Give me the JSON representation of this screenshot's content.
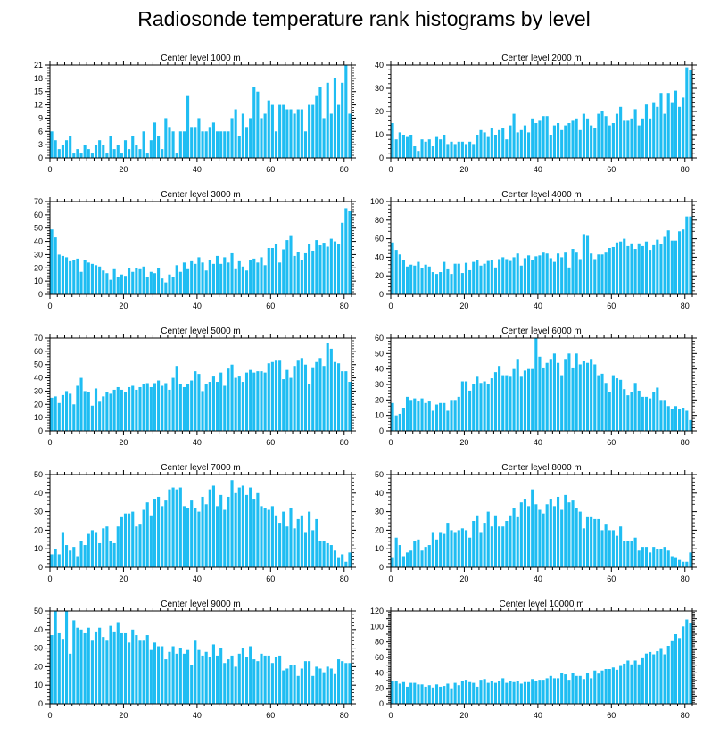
{
  "figure": {
    "title": "Radiosonde temperature rank histograms by level",
    "bar_color": "#1fbdf2"
  },
  "chart_data": [
    {
      "type": "bar",
      "title": "Center level 1000 m",
      "x": {
        "min": 0,
        "max": 82,
        "ticks": [
          0,
          20,
          40,
          60,
          80
        ]
      },
      "y": {
        "min": 0,
        "max": 21,
        "ticks": [
          0,
          3,
          6,
          9,
          12,
          15,
          18,
          21
        ]
      },
      "categories_start": 0,
      "values": [
        6,
        4,
        2,
        3,
        4,
        5,
        1,
        2,
        1,
        3,
        2,
        1,
        3,
        4,
        3,
        1,
        5,
        2,
        3,
        1,
        4,
        2,
        5,
        3,
        2,
        6,
        1,
        4,
        8,
        5,
        2,
        9,
        7,
        6,
        1,
        6,
        6,
        14,
        7,
        7,
        9,
        6,
        6,
        7,
        8,
        6,
        6,
        6,
        6,
        9,
        11,
        5,
        10,
        7,
        9,
        16,
        15,
        9,
        10,
        13,
        12,
        6,
        12,
        12,
        11,
        11,
        10,
        11,
        11,
        6,
        12,
        12,
        14,
        16,
        9,
        17,
        10,
        18,
        12,
        17,
        21,
        10
      ]
    },
    {
      "type": "bar",
      "title": "Center level 2000 m",
      "x": {
        "min": 0,
        "max": 82,
        "ticks": [
          0,
          20,
          40,
          60,
          80
        ]
      },
      "y": {
        "min": 0,
        "max": 40,
        "ticks": [
          0,
          10,
          20,
          30,
          40
        ]
      },
      "categories_start": 0,
      "values": [
        15,
        8,
        11,
        10,
        9,
        10,
        5,
        3,
        8,
        7,
        8,
        5,
        9,
        8,
        10,
        6,
        7,
        6,
        7,
        7,
        6,
        7,
        6,
        10,
        12,
        11,
        9,
        13,
        10,
        12,
        13,
        8,
        14,
        19,
        11,
        12,
        14,
        11,
        17,
        15,
        16,
        18,
        18,
        10,
        14,
        15,
        12,
        14,
        15,
        16,
        17,
        12,
        19,
        17,
        14,
        13,
        19,
        20,
        18,
        14,
        15,
        19,
        22,
        16,
        16,
        17,
        21,
        14,
        17,
        23,
        17,
        24,
        22,
        28,
        19,
        28,
        24,
        29,
        22,
        26,
        39,
        38
      ]
    },
    {
      "type": "bar",
      "title": "Center level 3000 m",
      "x": {
        "min": 0,
        "max": 82,
        "ticks": [
          0,
          20,
          40,
          60,
          80
        ]
      },
      "y": {
        "min": 0,
        "max": 70,
        "ticks": [
          0,
          10,
          20,
          30,
          40,
          50,
          60,
          70
        ]
      },
      "categories_start": 0,
      "values": [
        49,
        43,
        30,
        29,
        28,
        25,
        26,
        27,
        17,
        26,
        24,
        23,
        22,
        21,
        18,
        16,
        11,
        19,
        13,
        15,
        14,
        20,
        17,
        20,
        19,
        21,
        13,
        17,
        16,
        20,
        12,
        9,
        15,
        13,
        22,
        17,
        24,
        19,
        25,
        23,
        28,
        24,
        18,
        26,
        23,
        29,
        23,
        28,
        24,
        31,
        19,
        25,
        21,
        18,
        26,
        27,
        24,
        28,
        22,
        35,
        35,
        38,
        24,
        34,
        41,
        44,
        29,
        32,
        26,
        31,
        38,
        33,
        41,
        37,
        39,
        36,
        42,
        40,
        38,
        54,
        65,
        63
      ]
    },
    {
      "type": "bar",
      "title": "Center level 4000 m",
      "x": {
        "min": 0,
        "max": 82,
        "ticks": [
          0,
          20,
          40,
          60,
          80
        ]
      },
      "y": {
        "min": 0,
        "max": 100,
        "ticks": [
          0,
          20,
          40,
          60,
          80,
          100
        ]
      },
      "categories_start": 0,
      "values": [
        56,
        48,
        43,
        37,
        30,
        32,
        31,
        35,
        28,
        32,
        30,
        24,
        22,
        24,
        35,
        27,
        22,
        33,
        33,
        23,
        34,
        26,
        35,
        37,
        31,
        33,
        36,
        37,
        29,
        38,
        40,
        38,
        36,
        40,
        44,
        31,
        39,
        42,
        37,
        41,
        42,
        45,
        44,
        39,
        35,
        44,
        40,
        45,
        29,
        49,
        45,
        38,
        65,
        63,
        44,
        38,
        43,
        43,
        45,
        50,
        51,
        56,
        57,
        60,
        52,
        55,
        49,
        55,
        52,
        57,
        48,
        53,
        59,
        54,
        62,
        69,
        58,
        58,
        68,
        70,
        84,
        84
      ]
    },
    {
      "type": "bar",
      "title": "Center level 5000 m",
      "x": {
        "min": 0,
        "max": 82,
        "ticks": [
          0,
          20,
          40,
          60,
          80
        ]
      },
      "y": {
        "min": 0,
        "max": 70,
        "ticks": [
          0,
          10,
          20,
          30,
          40,
          50,
          60,
          70
        ]
      },
      "categories_start": 0,
      "values": [
        25,
        26,
        21,
        27,
        30,
        28,
        20,
        34,
        40,
        30,
        29,
        19,
        32,
        22,
        26,
        29,
        28,
        31,
        33,
        31,
        29,
        33,
        34,
        31,
        33,
        35,
        36,
        33,
        36,
        38,
        34,
        36,
        31,
        40,
        49,
        35,
        33,
        35,
        38,
        45,
        43,
        30,
        35,
        37,
        41,
        37,
        44,
        34,
        47,
        50,
        40,
        41,
        37,
        44,
        46,
        44,
        45,
        45,
        44,
        51,
        52,
        53,
        53,
        39,
        46,
        40,
        49,
        53,
        55,
        50,
        35,
        48,
        52,
        55,
        49,
        66,
        62,
        52,
        51,
        45,
        45,
        37
      ]
    },
    {
      "type": "bar",
      "title": "Center level 6000 m",
      "x": {
        "min": 0,
        "max": 82,
        "ticks": [
          0,
          20,
          40,
          60,
          80
        ]
      },
      "y": {
        "min": 0,
        "max": 60,
        "ticks": [
          0,
          10,
          20,
          30,
          40,
          50,
          60
        ]
      },
      "categories_start": 0,
      "values": [
        18,
        10,
        11,
        15,
        22,
        20,
        21,
        19,
        21,
        18,
        19,
        13,
        17,
        18,
        18,
        13,
        20,
        20,
        22,
        32,
        32,
        26,
        30,
        35,
        31,
        32,
        30,
        34,
        38,
        42,
        36,
        36,
        35,
        40,
        46,
        35,
        39,
        40,
        40,
        60,
        48,
        41,
        44,
        46,
        50,
        44,
        36,
        46,
        50,
        41,
        50,
        43,
        45,
        44,
        46,
        43,
        36,
        37,
        31,
        25,
        36,
        34,
        33,
        27,
        23,
        25,
        31,
        26,
        22,
        22,
        21,
        25,
        28,
        20,
        20,
        16,
        14,
        16,
        14,
        15,
        13,
        7
      ]
    },
    {
      "type": "bar",
      "title": "Center level 7000 m",
      "x": {
        "min": 0,
        "max": 82,
        "ticks": [
          0,
          20,
          40,
          60,
          80
        ]
      },
      "y": {
        "min": 0,
        "max": 50,
        "ticks": [
          0,
          10,
          20,
          30,
          40,
          50
        ]
      },
      "categories_start": 0,
      "values": [
        7,
        10,
        7,
        19,
        12,
        9,
        11,
        6,
        14,
        12,
        18,
        20,
        19,
        13,
        21,
        22,
        14,
        13,
        22,
        27,
        29,
        29,
        30,
        22,
        23,
        31,
        35,
        28,
        37,
        38,
        33,
        36,
        42,
        43,
        42,
        43,
        33,
        32,
        36,
        32,
        30,
        38,
        34,
        42,
        44,
        33,
        39,
        31,
        38,
        47,
        40,
        43,
        44,
        39,
        43,
        37,
        40,
        33,
        32,
        31,
        33,
        28,
        24,
        30,
        22,
        32,
        21,
        26,
        28,
        19,
        30,
        20,
        26,
        14,
        14,
        13,
        12,
        9,
        5,
        7,
        3,
        8
      ]
    },
    {
      "type": "bar",
      "title": "Center level 8000 m",
      "x": {
        "min": 0,
        "max": 82,
        "ticks": [
          0,
          20,
          40,
          60,
          80
        ]
      },
      "y": {
        "min": 0,
        "max": 50,
        "ticks": [
          0,
          10,
          20,
          30,
          40,
          50
        ]
      },
      "categories_start": 0,
      "values": [
        5,
        16,
        12,
        6,
        8,
        9,
        14,
        15,
        9,
        11,
        12,
        19,
        15,
        19,
        18,
        24,
        20,
        19,
        20,
        21,
        20,
        16,
        25,
        28,
        19,
        24,
        30,
        22,
        28,
        22,
        22,
        25,
        28,
        32,
        27,
        35,
        37,
        33,
        42,
        34,
        31,
        29,
        34,
        37,
        33,
        38,
        31,
        39,
        35,
        36,
        32,
        30,
        21,
        27,
        27,
        26,
        26,
        20,
        23,
        20,
        20,
        17,
        22,
        14,
        14,
        14,
        16,
        9,
        11,
        11,
        8,
        11,
        10,
        10,
        11,
        9,
        6,
        5,
        4,
        3,
        3,
        8
      ]
    },
    {
      "type": "bar",
      "title": "Center level 9000 m",
      "x": {
        "min": 0,
        "max": 82,
        "ticks": [
          0,
          20,
          40,
          60,
          80
        ]
      },
      "y": {
        "min": 0,
        "max": 50,
        "ticks": [
          0,
          10,
          20,
          30,
          40,
          50
        ]
      },
      "categories_start": 0,
      "values": [
        37,
        50,
        38,
        35,
        50,
        27,
        45,
        41,
        40,
        38,
        41,
        34,
        39,
        41,
        36,
        34,
        42,
        39,
        44,
        38,
        38,
        33,
        40,
        37,
        34,
        34,
        37,
        29,
        33,
        31,
        31,
        24,
        28,
        31,
        27,
        30,
        27,
        29,
        21,
        34,
        29,
        26,
        28,
        25,
        32,
        26,
        30,
        22,
        24,
        26,
        20,
        27,
        30,
        25,
        31,
        24,
        23,
        27,
        26,
        26,
        22,
        25,
        26,
        18,
        19,
        21,
        21,
        15,
        19,
        23,
        23,
        15,
        20,
        19,
        17,
        20,
        19,
        16,
        24,
        23,
        22,
        22
      ]
    },
    {
      "type": "bar",
      "title": "Center level 10000 m",
      "x": {
        "min": 0,
        "max": 82,
        "ticks": [
          0,
          20,
          40,
          60,
          80
        ]
      },
      "y": {
        "min": 0,
        "max": 120,
        "ticks": [
          0,
          10,
          20,
          30,
          40,
          50,
          60,
          70,
          80,
          90,
          100,
          110,
          120
        ]
      },
      "y_labeled_ticks": [
        0,
        20,
        40,
        60,
        80,
        100,
        120
      ],
      "categories_start": 0,
      "values": [
        30,
        29,
        26,
        28,
        22,
        27,
        27,
        25,
        25,
        22,
        24,
        21,
        25,
        22,
        23,
        26,
        20,
        27,
        24,
        30,
        31,
        28,
        27,
        22,
        31,
        32,
        27,
        30,
        27,
        29,
        33,
        27,
        30,
        28,
        29,
        26,
        28,
        28,
        32,
        29,
        31,
        31,
        33,
        36,
        33,
        33,
        40,
        38,
        31,
        40,
        36,
        36,
        32,
        40,
        33,
        43,
        39,
        43,
        45,
        45,
        47,
        44,
        49,
        52,
        56,
        51,
        56,
        51,
        59,
        65,
        67,
        64,
        68,
        71,
        64,
        75,
        81,
        90,
        85,
        100,
        109,
        105
      ]
    }
  ]
}
